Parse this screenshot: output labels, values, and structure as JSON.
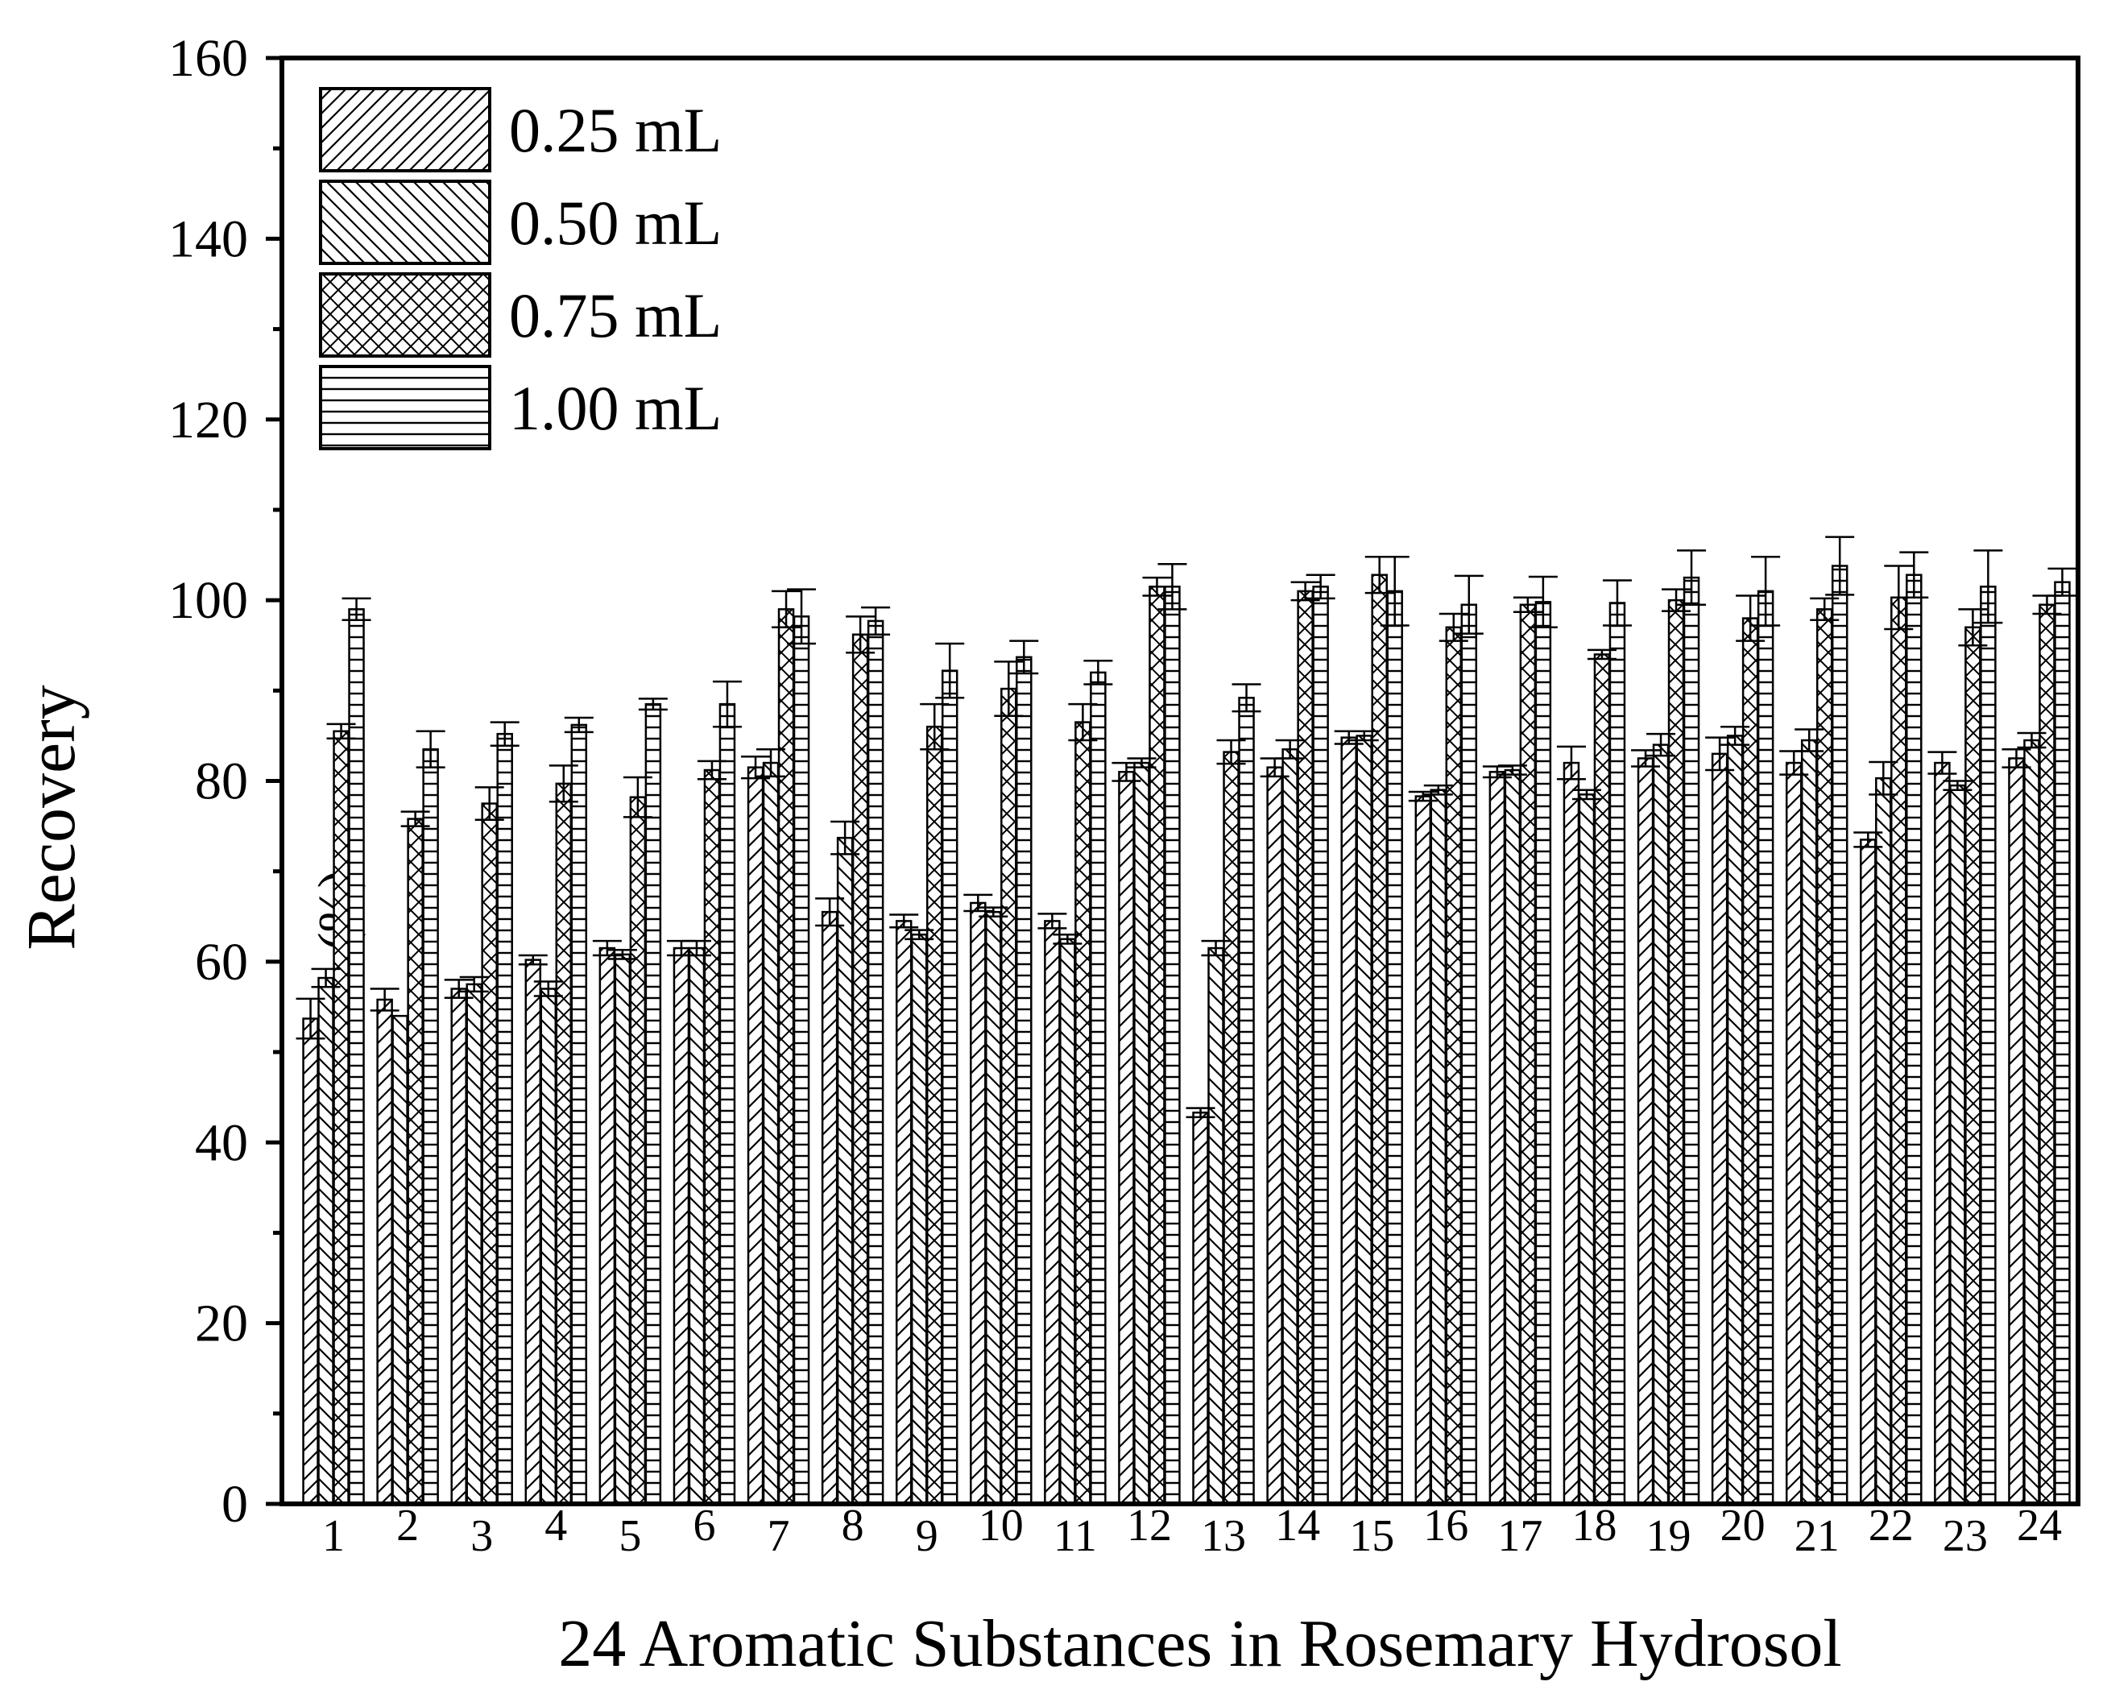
{
  "chart_data": {
    "type": "bar",
    "title": "",
    "xlabel": "24 Aromatic Substances in Rosemary Hydrosol",
    "ylabel": "Recovery",
    "ylabel_unit": "(%)",
    "ylim": [
      0,
      160
    ],
    "yticks": [
      "0",
      "20",
      "40",
      "60",
      "80",
      "100",
      "120",
      "140",
      "160"
    ],
    "grid": false,
    "legend_position": "top-left",
    "categories": [
      "1",
      "2",
      "3",
      "4",
      "5",
      "6",
      "7",
      "8",
      "9",
      "10",
      "11",
      "12",
      "13",
      "14",
      "15",
      "16",
      "17",
      "18",
      "19",
      "20",
      "21",
      "22",
      "23",
      "24"
    ],
    "series": [
      {
        "name": "0.25 mL",
        "values": [
          53.7,
          55.8,
          57.0,
          60.2,
          61.5,
          61.5,
          81.5,
          65.5,
          64.5,
          66.5,
          64.5,
          81.0,
          43.3,
          81.5,
          84.8,
          78.3,
          81.0,
          82.0,
          82.5,
          83.0,
          82.0,
          73.5,
          82.0,
          82.5
        ],
        "errors": [
          2.2,
          1.2,
          1.0,
          0.5,
          0.8,
          0.8,
          1.2,
          1.5,
          0.7,
          0.9,
          0.8,
          1.0,
          0.5,
          1.0,
          0.7,
          0.5,
          0.6,
          1.8,
          0.9,
          1.8,
          1.3,
          0.8,
          1.2,
          1.0
        ]
      },
      {
        "name": "0.50 mL",
        "values": [
          58.2,
          54.0,
          57.5,
          57.0,
          60.8,
          61.5,
          82.0,
          73.7,
          63.0,
          65.5,
          62.5,
          82.0,
          61.5,
          83.5,
          85.0,
          79.0,
          81.2,
          78.5,
          84.0,
          85.0,
          84.5,
          80.3,
          79.5,
          84.5
        ],
        "errors": [
          1.0,
          0.0,
          0.8,
          0.8,
          0.5,
          0.8,
          1.5,
          1.8,
          0.5,
          0.5,
          0.5,
          0.5,
          0.8,
          1.0,
          0.5,
          0.5,
          0.5,
          0.5,
          1.2,
          1.0,
          1.2,
          1.8,
          0.5,
          0.8
        ]
      },
      {
        "name": "0.75 mL",
        "values": [
          85.5,
          75.8,
          77.5,
          79.7,
          78.2,
          81.2,
          99.0,
          96.2,
          86.0,
          90.2,
          86.5,
          101.5,
          83.2,
          101.0,
          102.8,
          97.0,
          99.5,
          94.0,
          100.0,
          98.0,
          99.0,
          100.3,
          97.0,
          99.5
        ],
        "errors": [
          0.8,
          0.8,
          1.8,
          2.0,
          2.2,
          1.0,
          2.0,
          2.0,
          2.5,
          3.0,
          2.0,
          1.0,
          1.3,
          1.0,
          2.0,
          1.5,
          0.8,
          0.5,
          1.2,
          2.5,
          1.2,
          3.5,
          2.0,
          1.0
        ]
      },
      {
        "name": "1.00 mL",
        "values": [
          99.0,
          83.5,
          85.2,
          86.2,
          88.5,
          88.5,
          98.2,
          97.7,
          92.2,
          93.7,
          92.0,
          101.5,
          89.2,
          101.5,
          101.0,
          99.5,
          99.8,
          99.7,
          102.5,
          101.0,
          103.8,
          102.8,
          101.5,
          102.0
        ],
        "errors": [
          1.2,
          2.0,
          1.3,
          0.8,
          0.6,
          2.5,
          3.0,
          1.5,
          3.0,
          1.8,
          1.3,
          2.5,
          1.5,
          1.3,
          3.8,
          3.2,
          2.8,
          2.5,
          3.0,
          3.8,
          3.2,
          2.5,
          4.0,
          1.5
        ]
      }
    ]
  }
}
